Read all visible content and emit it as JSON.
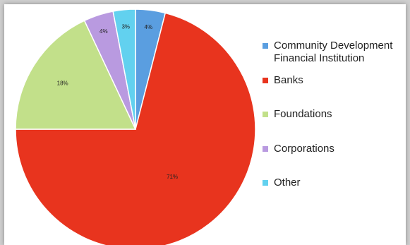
{
  "chart_data": {
    "type": "pie",
    "title": "",
    "categories": [
      "Community Development Financial Institution",
      "Banks",
      "Foundations",
      "Corporations",
      "Other"
    ],
    "values": [
      4,
      71,
      18,
      4,
      3
    ],
    "value_labels": [
      "4%",
      "71%",
      "18%",
      "4%",
      "3%"
    ],
    "colors": [
      "#5a9ee0",
      "#e8341e",
      "#c2e08a",
      "#b99ae0",
      "#62d1ef"
    ],
    "start_angle_deg": 0,
    "direction": "clockwise",
    "legend_position": "right"
  },
  "legend": {
    "items": [
      {
        "label": "Community Development Financial Institution",
        "color": "#5a9ee0"
      },
      {
        "label": "Banks",
        "color": "#e8341e"
      },
      {
        "label": "Foundations",
        "color": "#c2e08a"
      },
      {
        "label": "Corporations",
        "color": "#b99ae0"
      },
      {
        "label": "Other",
        "color": "#62d1ef"
      }
    ]
  }
}
